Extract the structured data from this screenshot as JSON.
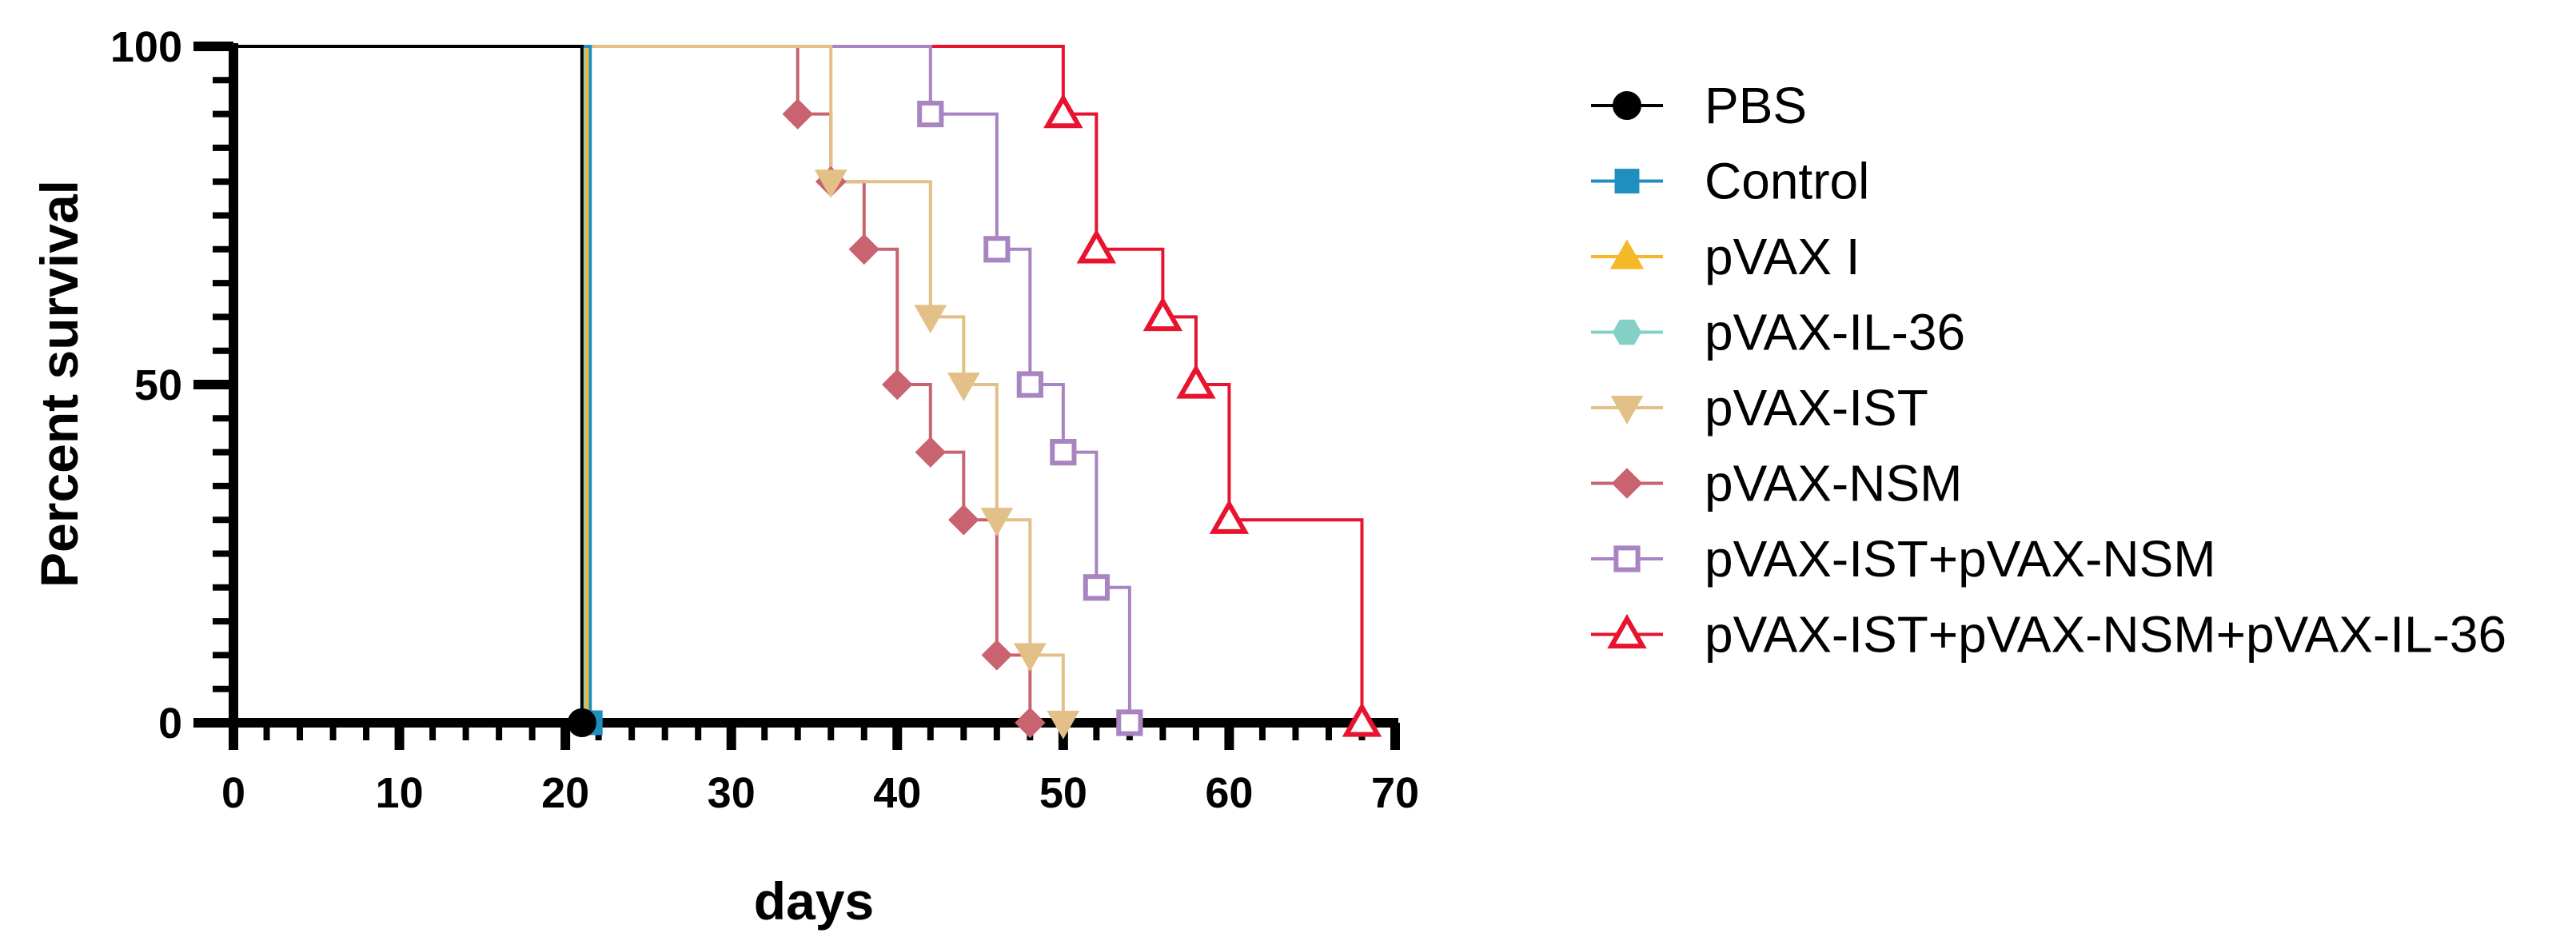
{
  "chart_data": {
    "type": "line",
    "subtype": "kaplan-meier-step",
    "title": "",
    "xlabel": "days",
    "ylabel": "Percent survival",
    "xlim": [
      0,
      70
    ],
    "ylim": [
      0,
      100
    ],
    "xticks": [
      0,
      10,
      20,
      30,
      40,
      50,
      60,
      70
    ],
    "yticks": [
      0,
      50,
      100
    ],
    "xtick_labels": [
      "0",
      "10",
      "20",
      "30",
      "40",
      "50",
      "60",
      "70"
    ],
    "ytick_labels": [
      "0",
      "50",
      "100"
    ],
    "grid": false,
    "legend_position": "right",
    "series": [
      {
        "name": "PBS",
        "color": "#000000",
        "marker": "circle",
        "filled": true,
        "steps": [
          [
            0,
            100
          ],
          [
            21,
            0
          ]
        ],
        "markers": [
          [
            21,
            0
          ]
        ]
      },
      {
        "name": "Control",
        "color": "#1f8fbf",
        "marker": "square",
        "filled": true,
        "steps": [
          [
            0,
            100
          ],
          [
            21.5,
            0
          ]
        ],
        "markers": [
          [
            21.5,
            0
          ]
        ]
      },
      {
        "name": "pVAX I",
        "color": "#f5b829",
        "marker": "triangle-up",
        "filled": true,
        "steps": [
          [
            0,
            100
          ],
          [
            21.3,
            0
          ]
        ],
        "markers": []
      },
      {
        "name": "pVAX-IL-36",
        "color": "#82d1c4",
        "marker": "hexagon",
        "filled": true,
        "steps": [
          [
            0,
            100
          ],
          [
            21.2,
            0
          ]
        ],
        "markers": []
      },
      {
        "name": "pVAX-IST",
        "color": "#e2c088",
        "marker": "triangle-down",
        "filled": true,
        "steps": [
          [
            0,
            100
          ],
          [
            36,
            80
          ],
          [
            42,
            60
          ],
          [
            44,
            50
          ],
          [
            46,
            30
          ],
          [
            48,
            10
          ],
          [
            50,
            0
          ]
        ],
        "markers": [
          [
            36,
            80
          ],
          [
            42,
            60
          ],
          [
            44,
            50
          ],
          [
            46,
            30
          ],
          [
            48,
            10
          ],
          [
            50,
            0
          ]
        ]
      },
      {
        "name": "pVAX-NSM",
        "color": "#c8636f",
        "marker": "diamond",
        "filled": true,
        "steps": [
          [
            0,
            100
          ],
          [
            34,
            90
          ],
          [
            36,
            80
          ],
          [
            38,
            70
          ],
          [
            40,
            50
          ],
          [
            42,
            40
          ],
          [
            44,
            30
          ],
          [
            46,
            10
          ],
          [
            48,
            0
          ]
        ],
        "markers": [
          [
            34,
            90
          ],
          [
            36,
            80
          ],
          [
            38,
            70
          ],
          [
            40,
            50
          ],
          [
            42,
            40
          ],
          [
            44,
            30
          ],
          [
            46,
            10
          ],
          [
            48,
            0
          ]
        ]
      },
      {
        "name": "pVAX-IST+pVAX-NSM",
        "color": "#a884c0",
        "marker": "square",
        "filled": false,
        "steps": [
          [
            0,
            100
          ],
          [
            42,
            90
          ],
          [
            46,
            70
          ],
          [
            48,
            50
          ],
          [
            50,
            40
          ],
          [
            52,
            20
          ],
          [
            54,
            0
          ]
        ],
        "markers": [
          [
            42,
            90
          ],
          [
            46,
            70
          ],
          [
            48,
            50
          ],
          [
            50,
            40
          ],
          [
            52,
            20
          ],
          [
            54,
            0
          ]
        ]
      },
      {
        "name": "pVAX-IST+pVAX-NSM+pVAX-IL-36",
        "color": "#e8132e",
        "marker": "triangle-up",
        "filled": false,
        "steps": [
          [
            0,
            100
          ],
          [
            50,
            90
          ],
          [
            52,
            70
          ],
          [
            56,
            60
          ],
          [
            58,
            50
          ],
          [
            60,
            30
          ],
          [
            68,
            0
          ]
        ],
        "markers": [
          [
            50,
            90
          ],
          [
            52,
            70
          ],
          [
            56,
            60
          ],
          [
            58,
            50
          ],
          [
            60,
            30
          ],
          [
            68,
            0
          ]
        ]
      }
    ]
  }
}
